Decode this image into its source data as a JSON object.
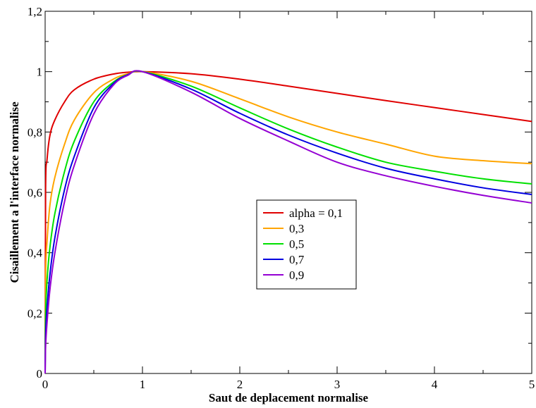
{
  "chart_data": {
    "type": "line",
    "title": "",
    "xlabel": "Saut de deplacement normalise",
    "ylabel": "Cisaillement a l'interface normalise",
    "xlim": [
      0,
      5
    ],
    "ylim": [
      0,
      1.2
    ],
    "x_ticks": [
      0,
      1,
      2,
      3,
      4,
      5
    ],
    "x_tick_labels": [
      "0",
      "1",
      "2",
      "3",
      "4",
      "5"
    ],
    "y_ticks": [
      0,
      0.2,
      0.4,
      0.6,
      0.8,
      1,
      1.2
    ],
    "y_tick_labels": [
      "0",
      "0,2",
      "0,4",
      "0,6",
      "0,8",
      "1",
      "1,2"
    ],
    "grid": false,
    "legend_position": "center",
    "series": [
      {
        "name": "alpha = 0,1",
        "color": "#e00000",
        "x": [
          0,
          0.005,
          0.02,
          0.05,
          0.1,
          0.2,
          0.3,
          0.5,
          0.7,
          0.85,
          1,
          1.5,
          2,
          2.5,
          3,
          3.5,
          4,
          4.5,
          5
        ],
        "y": [
          0,
          0.61,
          0.71,
          0.79,
          0.84,
          0.9,
          0.94,
          0.975,
          0.992,
          0.998,
          1,
          0.993,
          0.975,
          0.952,
          0.928,
          0.904,
          0.881,
          0.858,
          0.835
        ]
      },
      {
        "name": "0,3",
        "color": "#ffa500",
        "x": [
          0,
          0.005,
          0.02,
          0.05,
          0.1,
          0.2,
          0.3,
          0.5,
          0.7,
          0.85,
          1,
          1.5,
          2,
          2.5,
          3,
          3.5,
          4,
          4.5,
          5
        ],
        "y": [
          0,
          0.33,
          0.44,
          0.56,
          0.65,
          0.76,
          0.84,
          0.93,
          0.975,
          0.993,
          1,
          0.968,
          0.91,
          0.85,
          0.8,
          0.76,
          0.72,
          0.705,
          0.695
        ]
      },
      {
        "name": "0,5",
        "color": "#00e000",
        "x": [
          0,
          0.005,
          0.02,
          0.05,
          0.1,
          0.2,
          0.3,
          0.5,
          0.7,
          0.85,
          1,
          1.5,
          2,
          2.5,
          3,
          3.5,
          4,
          4.5,
          5
        ],
        "y": [
          0,
          0.2,
          0.31,
          0.42,
          0.53,
          0.67,
          0.77,
          0.9,
          0.965,
          0.99,
          1,
          0.952,
          0.88,
          0.81,
          0.75,
          0.7,
          0.67,
          0.645,
          0.628
        ]
      },
      {
        "name": "0,7",
        "color": "#0000e0",
        "x": [
          0,
          0.005,
          0.02,
          0.05,
          0.1,
          0.2,
          0.3,
          0.5,
          0.7,
          0.85,
          1,
          1.5,
          2,
          2.5,
          3,
          3.5,
          4,
          4.5,
          5
        ],
        "y": [
          0,
          0.13,
          0.22,
          0.33,
          0.45,
          0.61,
          0.72,
          0.88,
          0.96,
          0.99,
          1,
          0.942,
          0.862,
          0.79,
          0.73,
          0.68,
          0.645,
          0.615,
          0.593
        ]
      },
      {
        "name": "0,9",
        "color": "#9400d3",
        "x": [
          0,
          0.005,
          0.02,
          0.05,
          0.1,
          0.2,
          0.3,
          0.5,
          0.7,
          0.85,
          1,
          1.5,
          2,
          2.5,
          3,
          3.5,
          4,
          4.5,
          5
        ],
        "y": [
          0,
          0.09,
          0.17,
          0.28,
          0.4,
          0.57,
          0.69,
          0.86,
          0.955,
          0.988,
          1,
          0.932,
          0.845,
          0.77,
          0.7,
          0.655,
          0.62,
          0.59,
          0.565
        ]
      }
    ]
  }
}
